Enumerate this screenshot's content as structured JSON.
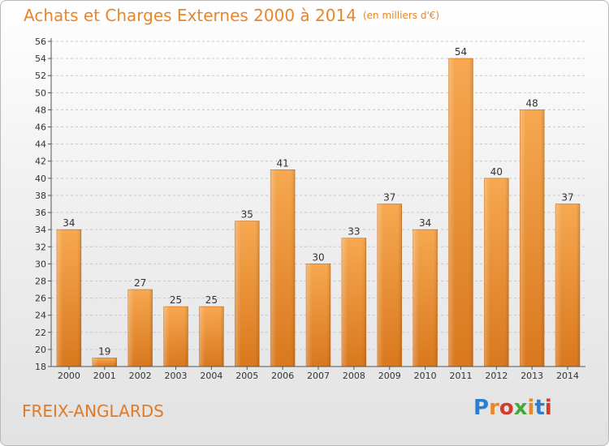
{
  "header": {
    "title": "Achats et Charges Externes 2000 à 2014",
    "unit": "(en milliers d'€)"
  },
  "footer": {
    "commune": "FREIX-ANGLARDS",
    "logo_text": "Proxiti",
    "logo_colors": [
      "#2a7fd4",
      "#e8862a",
      "#d43a2a",
      "#44a83c",
      "#e8862a",
      "#2a7fd4",
      "#d43a2a"
    ]
  },
  "colors": {
    "title": "#e8862a",
    "bar_top": "#f6a850",
    "bar_bottom": "#d9781e",
    "grid": "#c8c8c8"
  },
  "chart_data": {
    "type": "bar",
    "title": "Achats et Charges Externes 2000 à 2014",
    "subtitle": "(en milliers d'€)",
    "categories": [
      "2000",
      "2001",
      "2002",
      "2003",
      "2004",
      "2005",
      "2006",
      "2007",
      "2008",
      "2009",
      "2010",
      "2011",
      "2012",
      "2013",
      "2014"
    ],
    "values": [
      34,
      19,
      27,
      25,
      25,
      35,
      41,
      30,
      33,
      37,
      34,
      54,
      40,
      48,
      37
    ],
    "ylim": [
      18,
      56
    ],
    "yticks": [
      18,
      20,
      22,
      24,
      26,
      28,
      30,
      32,
      34,
      36,
      38,
      40,
      42,
      44,
      46,
      48,
      50,
      52,
      54,
      56
    ],
    "grid": true,
    "data_labels": true
  }
}
